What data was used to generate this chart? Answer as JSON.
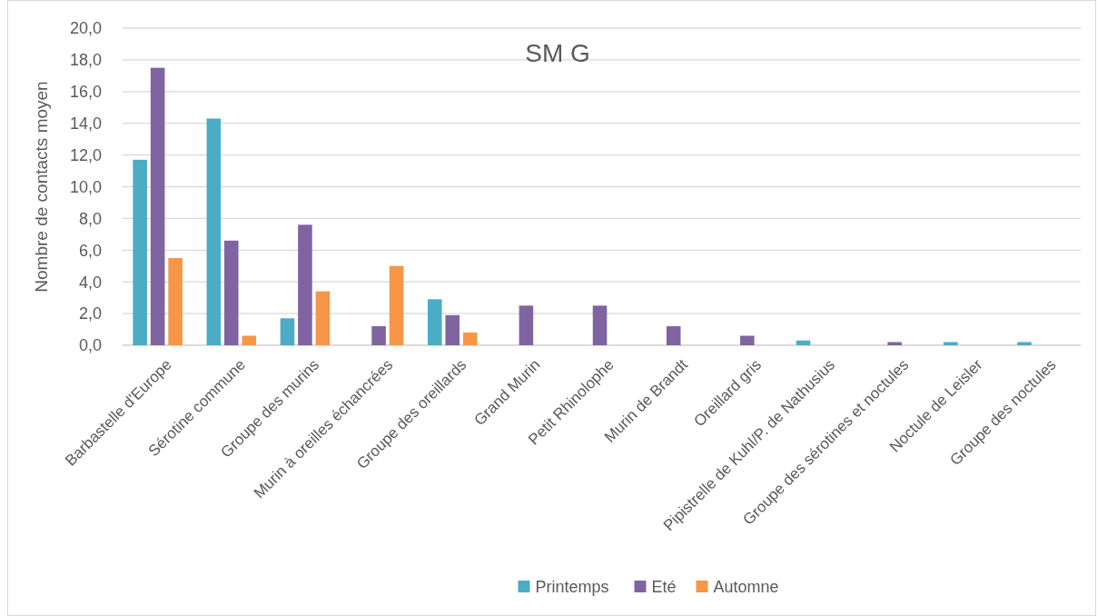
{
  "chart_data": {
    "type": "bar",
    "title": "SM G",
    "ylabel": "Nombre de contacts moyen",
    "categories": [
      "Barbastelle d'Europe",
      "Sérotine commune",
      "Groupe des murins",
      "Murin à oreilles échancrées",
      "Groupe des oreillards",
      "Grand Murin",
      "Petit Rhinolophe",
      "Murin de Brandt",
      "Oreillard gris",
      "Pipistrelle de Kuhl/P. de Nathusius",
      "Groupe des sérotines et noctules",
      "Noctule de Leisler",
      "Groupe des noctules"
    ],
    "series": [
      {
        "name": "Printemps",
        "color": "#4bacc6",
        "values": [
          11.7,
          14.3,
          1.7,
          null,
          2.9,
          null,
          null,
          null,
          null,
          0.3,
          null,
          0.2,
          0.2
        ]
      },
      {
        "name": "Eté",
        "color": "#8064a2",
        "values": [
          17.5,
          6.6,
          7.6,
          1.2,
          1.9,
          2.5,
          2.5,
          1.2,
          0.6,
          null,
          0.2,
          null,
          null
        ]
      },
      {
        "name": "Automne",
        "color": "#f79646",
        "values": [
          5.5,
          0.6,
          3.4,
          5.0,
          0.8,
          null,
          null,
          null,
          null,
          null,
          null,
          null,
          null
        ]
      }
    ],
    "ylim": [
      0,
      20
    ],
    "yticks": [
      {
        "value": 0,
        "label": "0,0"
      },
      {
        "value": 2,
        "label": "2,0"
      },
      {
        "value": 4,
        "label": "4,0"
      },
      {
        "value": 6,
        "label": "6,0"
      },
      {
        "value": 8,
        "label": "8,0"
      },
      {
        "value": 10,
        "label": "10,0"
      },
      {
        "value": 12,
        "label": "12,0"
      },
      {
        "value": 14,
        "label": "14,0"
      },
      {
        "value": 16,
        "label": "16,0"
      },
      {
        "value": 18,
        "label": "18,0"
      },
      {
        "value": 20,
        "label": "20,0"
      }
    ],
    "grid": true,
    "legend": "bottom"
  }
}
